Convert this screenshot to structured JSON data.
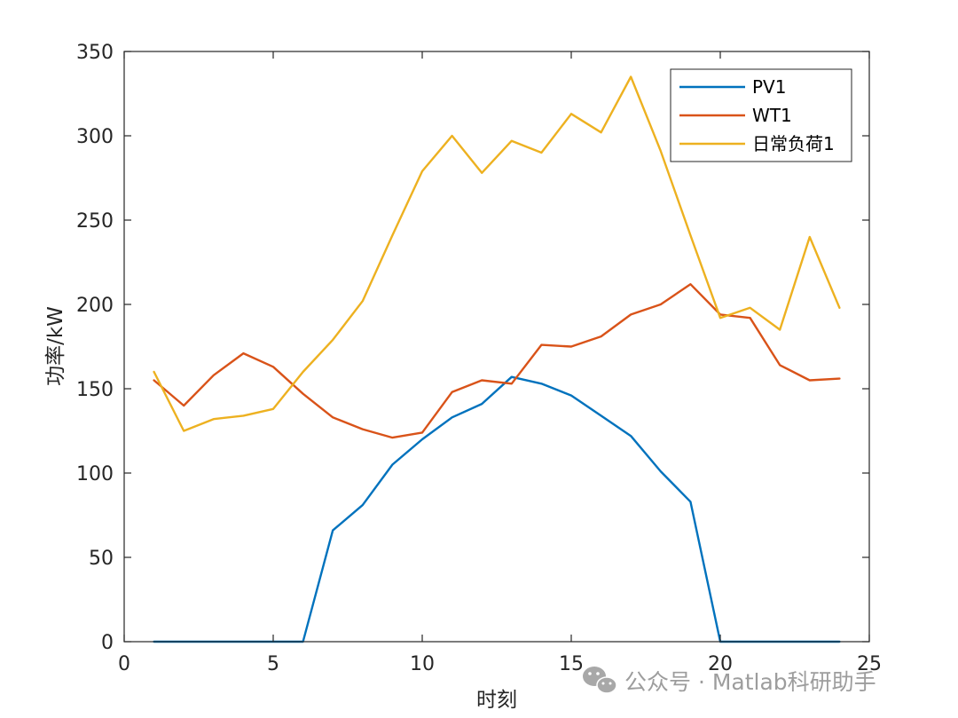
{
  "chart_data": {
    "type": "line",
    "xlabel": "时刻",
    "ylabel": "功率/kW",
    "xlim": [
      0,
      25
    ],
    "ylim": [
      0,
      350
    ],
    "xticks": [
      0,
      5,
      10,
      15,
      20,
      25
    ],
    "yticks": [
      0,
      50,
      100,
      150,
      200,
      250,
      300,
      350
    ],
    "grid": false,
    "legend_position": "top-right",
    "x": [
      1,
      2,
      3,
      4,
      5,
      6,
      7,
      8,
      9,
      10,
      11,
      12,
      13,
      14,
      15,
      16,
      17,
      18,
      19,
      20,
      21,
      22,
      23,
      24
    ],
    "series": [
      {
        "name": "PV1",
        "color": "#0072BD",
        "values": [
          0,
          0,
          0,
          0,
          0,
          0,
          66,
          81,
          105,
          120,
          133,
          141,
          157,
          153,
          146,
          134,
          122,
          101,
          83,
          0,
          0,
          0,
          0,
          0
        ]
      },
      {
        "name": "WT1",
        "color": "#D95319",
        "values": [
          155,
          140,
          158,
          171,
          163,
          147,
          133,
          126,
          121,
          124,
          148,
          155,
          153,
          176,
          175,
          181,
          194,
          200,
          212,
          194,
          192,
          164,
          155,
          156
        ]
      },
      {
        "name": "日常负荷1",
        "color": "#EDB120",
        "values": [
          160,
          125,
          132,
          134,
          138,
          160,
          179,
          202,
          241,
          279,
          300,
          278,
          297,
          290,
          313,
          302,
          335,
          291,
          241,
          192,
          198,
          185,
          240,
          198
        ]
      }
    ]
  },
  "watermark": {
    "icon": "wechat-icon",
    "text": "公众号 · Matlab科研助手"
  }
}
